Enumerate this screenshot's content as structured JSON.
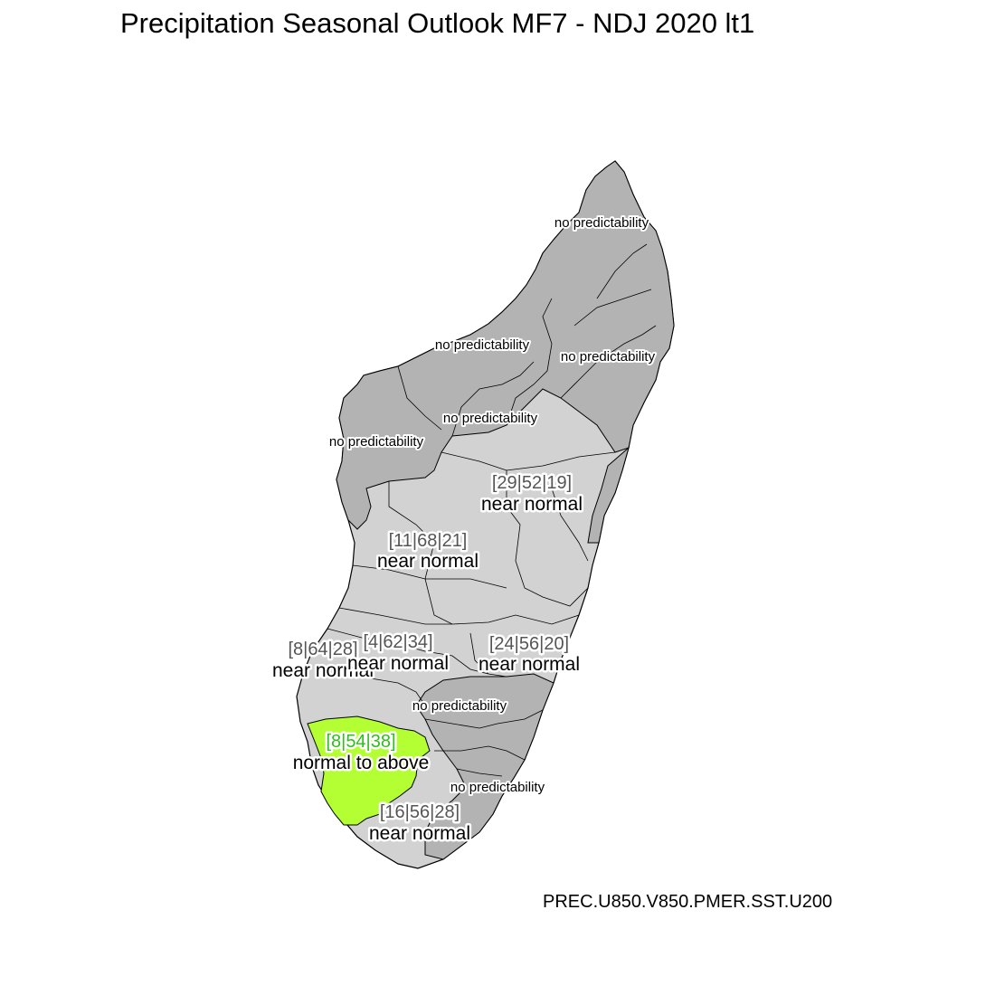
{
  "title": "Precipitation Seasonal Outlook MF7 - NDJ 2020 lt1",
  "caption": "PREC.U850.V850.PMER.SST.U200",
  "colors": {
    "no_predictability": "#B3B3B3",
    "near_normal": "#D2D2D2",
    "normal_to_above": "#B3FF33",
    "probs_text_grey": "#555555",
    "probs_text_green": "#2EBF1A",
    "boundary": "#000000"
  },
  "zones": [
    {
      "category": "no predictability",
      "probs": ""
    },
    {
      "category": "no predictability",
      "probs": ""
    },
    {
      "category": "no predictability",
      "probs": ""
    },
    {
      "category": "no predictability",
      "probs": ""
    },
    {
      "category": "no predictability",
      "probs": ""
    },
    {
      "category": "near normal",
      "probs": "[29|52|19]"
    },
    {
      "category": "near normal",
      "probs": "[11|68|21]"
    },
    {
      "category": "near normal",
      "probs": "[8|64|28]"
    },
    {
      "category": "near normal",
      "probs": "[4|62|34]"
    },
    {
      "category": "near normal",
      "probs": "[24|56|20]"
    },
    {
      "category": "no predictability",
      "probs": ""
    },
    {
      "category": "normal to above",
      "probs": "[8|54|38]"
    },
    {
      "category": "no predictability",
      "probs": ""
    },
    {
      "category": "near normal",
      "probs": "[16|56|28]"
    }
  ]
}
